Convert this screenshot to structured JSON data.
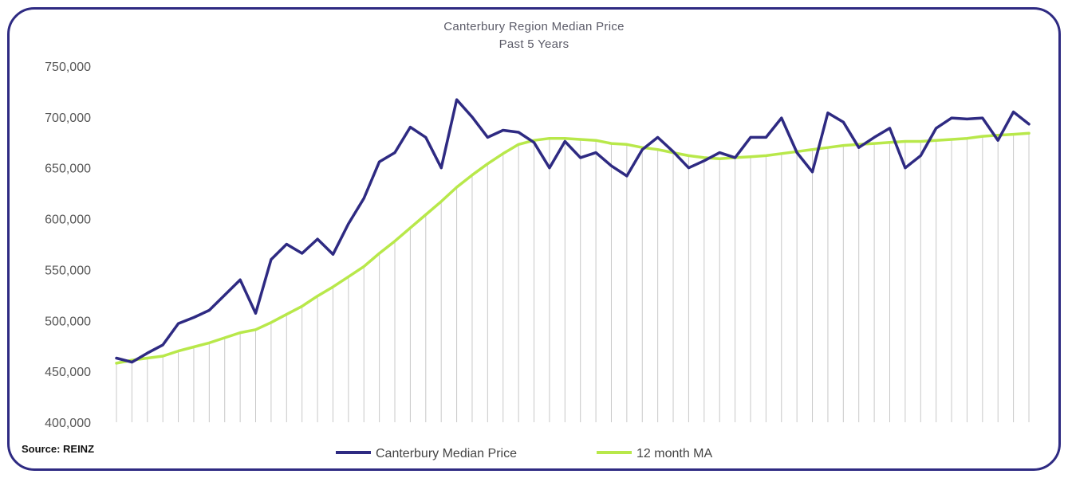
{
  "title": {
    "line1": "Canterbury Region Median Price",
    "line2": "Past 5 Years"
  },
  "source": "Source: REINZ",
  "colors": {
    "median": "#2e2a82",
    "ma": "#b8e84a",
    "frame": "#2e2a82",
    "axis_text": "#555555",
    "drop_line": "#c8c8c8"
  },
  "chart_data": {
    "type": "line",
    "x": [
      1,
      2,
      3,
      4,
      5,
      6,
      7,
      8,
      9,
      10,
      11,
      12,
      13,
      14,
      15,
      16,
      17,
      18,
      19,
      20,
      21,
      22,
      23,
      24,
      25,
      26,
      27,
      28,
      29,
      30,
      31,
      32,
      33,
      34,
      35,
      36,
      37,
      38,
      39,
      40,
      41,
      42,
      43,
      44,
      45,
      46,
      47,
      48,
      49,
      50,
      51,
      52,
      53,
      54,
      55,
      56,
      57,
      58,
      59,
      60
    ],
    "series": [
      {
        "name": "Canterbury Median Price",
        "values": [
          463000,
          459000,
          468000,
          476000,
          497000,
          503000,
          510000,
          525000,
          540000,
          507000,
          560000,
          575000,
          566000,
          580000,
          565000,
          595000,
          620000,
          656000,
          665000,
          690000,
          680000,
          650000,
          717000,
          700000,
          680000,
          687000,
          685000,
          675000,
          650000,
          676000,
          660000,
          665000,
          652000,
          642000,
          668000,
          680000,
          666000,
          650000,
          657000,
          665000,
          660000,
          680000,
          680000,
          699000,
          665000,
          646000,
          704000,
          695000,
          670000,
          680000,
          689000,
          650000,
          662000,
          689000,
          699000,
          698000,
          699000,
          677000,
          705000,
          693000
        ]
      },
      {
        "name": "12 month MA",
        "values": [
          458000,
          461000,
          463000,
          465000,
          470000,
          474000,
          478000,
          483000,
          488000,
          491000,
          498000,
          506000,
          514000,
          524000,
          533000,
          543000,
          553000,
          566000,
          578000,
          591000,
          604000,
          617000,
          631000,
          643000,
          654000,
          664000,
          673000,
          677000,
          679000,
          679000,
          678000,
          677000,
          674000,
          673000,
          670000,
          668000,
          665000,
          662000,
          660000,
          659000,
          660000,
          661000,
          662000,
          664000,
          666000,
          668000,
          670000,
          672000,
          673000,
          674000,
          675000,
          676000,
          676000,
          677000,
          678000,
          679000,
          681000,
          682000,
          683000,
          684000
        ]
      }
    ],
    "yticks": [
      "400,000",
      "450,000",
      "500,000",
      "550,000",
      "600,000",
      "650,000",
      "700,000",
      "750,000"
    ],
    "ylim": [
      400000,
      750000
    ],
    "grid": false,
    "legend_position": "bottom"
  }
}
